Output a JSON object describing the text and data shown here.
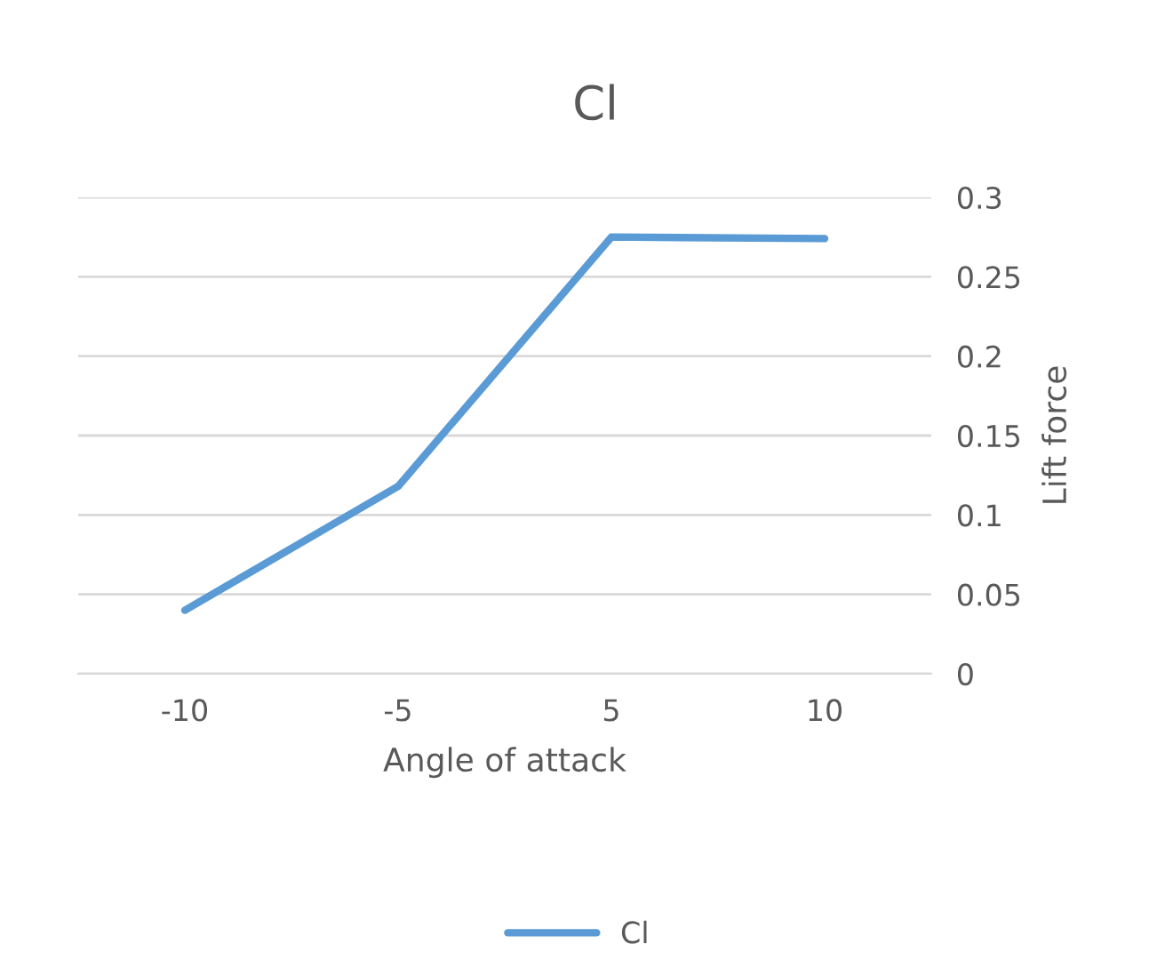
{
  "chart_data": {
    "type": "line",
    "title": "Cl",
    "xlabel": "Angle of attack",
    "ylabel": "Lift force",
    "categories": [
      "-10",
      "-5",
      "5",
      "10"
    ],
    "series": [
      {
        "name": "Cl",
        "color": "#5b9bd5",
        "values": [
          0.04,
          0.118,
          0.275,
          0.274
        ]
      }
    ],
    "ylim": [
      0,
      0.3
    ],
    "yticks": [
      0,
      0.05,
      0.1,
      0.15,
      0.2,
      0.25,
      0.3
    ],
    "grid": "y",
    "legend": "bottom",
    "marker": "none",
    "line_style": "solid"
  }
}
